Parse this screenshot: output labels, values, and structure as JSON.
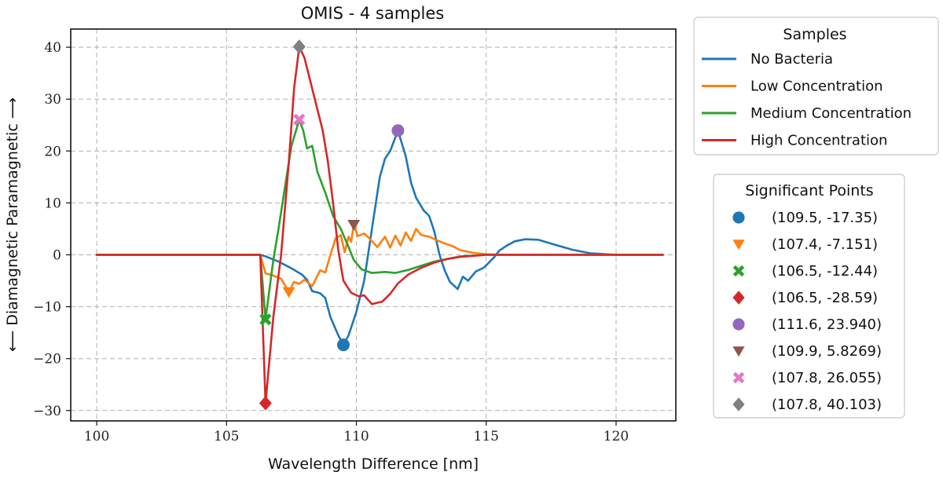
{
  "chart_data": {
    "type": "line",
    "title": "OMIS - 4 samples",
    "xlabel": "Wavelength Difference [nm]",
    "ylabel": "⟵ Diamagnetic Paramagnetic ⟶",
    "xlim": [
      99,
      122.3
    ],
    "ylim": [
      -32,
      43.5
    ],
    "xticks": [
      100,
      105,
      110,
      115,
      120
    ],
    "yticks": [
      -30,
      -20,
      -10,
      0,
      10,
      20,
      30,
      40
    ],
    "grid": true,
    "series_legend_title": "Samples",
    "series": [
      {
        "name": "No Bacteria",
        "color": "#1f77b4",
        "points": [
          [
            100,
            0
          ],
          [
            106.3,
            0
          ],
          [
            106.5,
            -0.3
          ],
          [
            107,
            -1.3
          ],
          [
            107.5,
            -2.6
          ],
          [
            107.9,
            -3.8
          ],
          [
            108.1,
            -4.8
          ],
          [
            108.3,
            -7
          ],
          [
            108.6,
            -7.4
          ],
          [
            108.8,
            -8.3
          ],
          [
            109,
            -12
          ],
          [
            109.3,
            -15.5
          ],
          [
            109.5,
            -17.35
          ],
          [
            109.7,
            -15.5
          ],
          [
            110,
            -11
          ],
          [
            110.3,
            -5
          ],
          [
            110.6,
            5
          ],
          [
            110.9,
            15
          ],
          [
            111.1,
            18.5
          ],
          [
            111.3,
            20
          ],
          [
            111.6,
            23.94
          ],
          [
            111.9,
            19
          ],
          [
            112.1,
            14
          ],
          [
            112.3,
            11
          ],
          [
            112.6,
            8.5
          ],
          [
            112.8,
            7.5
          ],
          [
            113,
            4.5
          ],
          [
            113.2,
            0
          ],
          [
            113.4,
            -3
          ],
          [
            113.6,
            -5.2
          ],
          [
            113.9,
            -6.6
          ],
          [
            114.1,
            -4.2
          ],
          [
            114.3,
            -5
          ],
          [
            114.6,
            -3.2
          ],
          [
            114.9,
            -2.5
          ],
          [
            115.1,
            -1.5
          ],
          [
            115.3,
            -0.5
          ],
          [
            115.5,
            0.8
          ],
          [
            115.8,
            1.8
          ],
          [
            116.1,
            2.6
          ],
          [
            116.5,
            3
          ],
          [
            117,
            2.9
          ],
          [
            117.6,
            2
          ],
          [
            118.3,
            1
          ],
          [
            119,
            0.3
          ],
          [
            120,
            0
          ],
          [
            121.8,
            0
          ]
        ]
      },
      {
        "name": "Low Concentration",
        "color": "#ff7f0e",
        "points": [
          [
            100,
            0
          ],
          [
            106.3,
            0
          ],
          [
            106.5,
            -3.6
          ],
          [
            106.8,
            -4
          ],
          [
            107.1,
            -4.6
          ],
          [
            107.4,
            -7.151
          ],
          [
            107.6,
            -5.2
          ],
          [
            107.8,
            -5.6
          ],
          [
            108,
            -4.8
          ],
          [
            108.3,
            -6
          ],
          [
            108.6,
            -3
          ],
          [
            108.8,
            -3.4
          ],
          [
            109,
            0
          ],
          [
            109.2,
            3.2
          ],
          [
            109.4,
            3.8
          ],
          [
            109.55,
            0.5
          ],
          [
            109.7,
            3.5
          ],
          [
            109.8,
            2.5
          ],
          [
            109.9,
            5.83
          ],
          [
            110.05,
            3.6
          ],
          [
            110.3,
            4.1
          ],
          [
            110.5,
            3.2
          ],
          [
            110.8,
            1.5
          ],
          [
            111.1,
            3.5
          ],
          [
            111.3,
            1.4
          ],
          [
            111.5,
            3.7
          ],
          [
            111.7,
            1.8
          ],
          [
            111.9,
            4.3
          ],
          [
            112.1,
            2.7
          ],
          [
            112.3,
            5
          ],
          [
            112.5,
            3.8
          ],
          [
            112.8,
            3.5
          ],
          [
            113.1,
            2.8
          ],
          [
            113.4,
            2.2
          ],
          [
            113.7,
            1.7
          ],
          [
            114,
            0.9
          ],
          [
            114.5,
            0.4
          ],
          [
            115,
            0.1
          ],
          [
            115.6,
            0
          ],
          [
            121.8,
            0
          ]
        ]
      },
      {
        "name": "Medium Concentration",
        "color": "#2ca02c",
        "points": [
          [
            100,
            0
          ],
          [
            106.3,
            0
          ],
          [
            106.5,
            -12.44
          ],
          [
            106.8,
            -1
          ],
          [
            107,
            5
          ],
          [
            107.25,
            13
          ],
          [
            107.5,
            21
          ],
          [
            107.8,
            26.055
          ],
          [
            107.95,
            24
          ],
          [
            108.1,
            20.5
          ],
          [
            108.3,
            21
          ],
          [
            108.5,
            16
          ],
          [
            108.8,
            12
          ],
          [
            109.1,
            7.5
          ],
          [
            109.4,
            5
          ],
          [
            109.7,
            1.5
          ],
          [
            109.9,
            -1
          ],
          [
            110.2,
            -2.8
          ],
          [
            110.6,
            -3.5
          ],
          [
            111.1,
            -3.3
          ],
          [
            111.5,
            -3.5
          ],
          [
            112,
            -2.9
          ],
          [
            112.5,
            -2.1
          ],
          [
            113,
            -1.3
          ],
          [
            113.5,
            -0.8
          ],
          [
            114,
            -0.3
          ],
          [
            115,
            0
          ],
          [
            121.8,
            0
          ]
        ]
      },
      {
        "name": "High Concentration",
        "color": "#d62728",
        "points": [
          [
            100,
            0
          ],
          [
            106.3,
            0
          ],
          [
            106.5,
            -28.59
          ],
          [
            106.8,
            -12
          ],
          [
            107.1,
            0
          ],
          [
            107.4,
            18
          ],
          [
            107.6,
            32
          ],
          [
            107.8,
            40.103
          ],
          [
            108,
            38
          ],
          [
            108.2,
            34
          ],
          [
            108.4,
            30
          ],
          [
            108.7,
            24
          ],
          [
            108.9,
            18
          ],
          [
            109.1,
            10
          ],
          [
            109.3,
            1
          ],
          [
            109.5,
            -5
          ],
          [
            109.8,
            -7.3
          ],
          [
            110.1,
            -8
          ],
          [
            110.3,
            -7.8
          ],
          [
            110.6,
            -9.5
          ],
          [
            111,
            -9
          ],
          [
            111.3,
            -7.5
          ],
          [
            111.6,
            -5.5
          ],
          [
            112,
            -3.8
          ],
          [
            112.5,
            -2.5
          ],
          [
            113,
            -1.5
          ],
          [
            113.5,
            -0.8
          ],
          [
            114,
            -0.4
          ],
          [
            115,
            0
          ],
          [
            121.8,
            0
          ]
        ]
      }
    ],
    "markers_legend_title": "Significant Points",
    "markers": [
      {
        "label": "(109.5, -17.35)",
        "x": 109.5,
        "y": -17.35,
        "shape": "circle",
        "color": "#1f77b4"
      },
      {
        "label": "(107.4, -7.151)",
        "x": 107.4,
        "y": -7.151,
        "shape": "triangle-down",
        "color": "#ff7f0e"
      },
      {
        "label": "(106.5, -12.44)",
        "x": 106.5,
        "y": -12.44,
        "shape": "x-filled",
        "color": "#2ca02c"
      },
      {
        "label": "(106.5, -28.59)",
        "x": 106.5,
        "y": -28.59,
        "shape": "diamond",
        "color": "#d62728"
      },
      {
        "label": "(111.6, 23.940)",
        "x": 111.6,
        "y": 23.94,
        "shape": "circle",
        "color": "#9467bd"
      },
      {
        "label": "(109.9, 5.8269)",
        "x": 109.9,
        "y": 5.8269,
        "shape": "triangle-down",
        "color": "#8c564b"
      },
      {
        "label": "(107.8, 26.055)",
        "x": 107.8,
        "y": 26.055,
        "shape": "x-filled",
        "color": "#e377c2"
      },
      {
        "label": "(107.8, 40.103)",
        "x": 107.8,
        "y": 40.103,
        "shape": "diamond",
        "color": "#7f7f7f"
      }
    ]
  }
}
